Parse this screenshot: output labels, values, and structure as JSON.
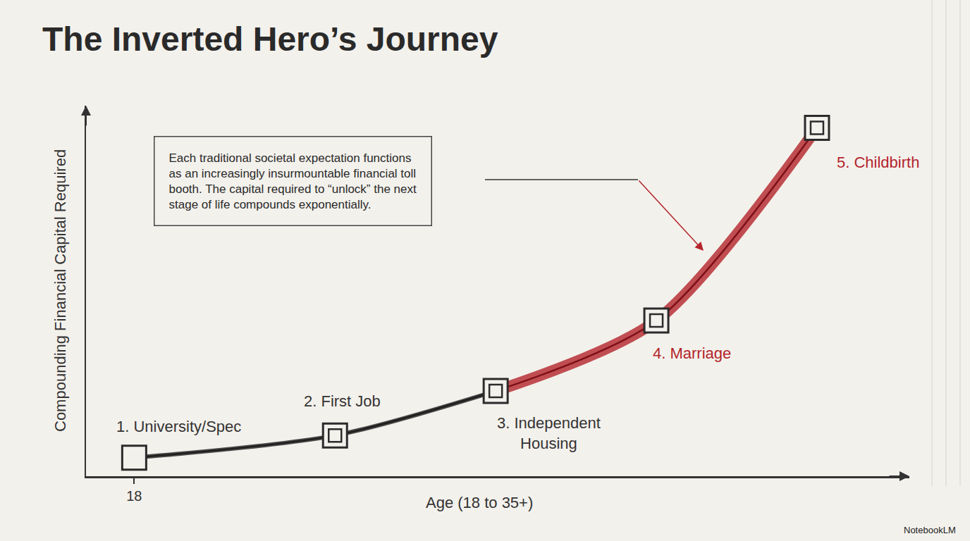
{
  "chart_data": {
    "type": "line",
    "title": "The Inverted Hero’s Journey",
    "x_label": "Age (18 to 35+)",
    "y_label": "Compounding Financial Capital Required",
    "x": [
      18,
      23,
      27,
      31,
      35
    ],
    "values": [
      5,
      11,
      23,
      42,
      94
    ],
    "point_labels": [
      "1. University/Spec",
      "2. First Job",
      "3. Independent Housing",
      "4. Marriage",
      "5. Childbirth"
    ],
    "colors": [
      "#2b2b2b",
      "#2b2b2b",
      "#2b2b2b",
      "#b3242b",
      "#b3242b"
    ],
    "marker": "square",
    "xlim": [
      16.8,
      37.3
    ],
    "xticks": [
      18
    ],
    "ylim": [
      0,
      100
    ],
    "yticks": [],
    "tick_labels": "x",
    "grid": false,
    "annotation": "Each traditional societal expectation functions as an increasingly insurmountable financial toll booth. The capital required to “unlock” the next stage of life compounds exponentially.",
    "footer": "NotebookLM"
  }
}
